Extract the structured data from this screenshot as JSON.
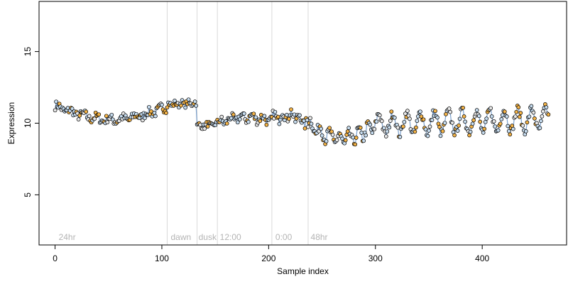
{
  "chart_data": {
    "type": "scatter",
    "title": "",
    "xlabel": "Sample index",
    "ylabel": "Expression",
    "xlim": [
      -15,
      479
    ],
    "ylim": [
      1.5,
      18.5
    ],
    "x_ticks": [
      0,
      100,
      200,
      300,
      400
    ],
    "y_ticks": [
      5,
      10,
      15
    ],
    "grid": false,
    "legend": "none",
    "phase_markers": [
      {
        "x": 105,
        "label": ""
      },
      {
        "x": 133,
        "label": ""
      },
      {
        "x": 152,
        "label": ""
      },
      {
        "x": 203,
        "label": ""
      },
      {
        "x": 237,
        "label": ""
      }
    ],
    "phase_labels": [
      {
        "x": 2,
        "label": "24hr"
      },
      {
        "x": 107,
        "label": "dawn"
      },
      {
        "x": 133,
        "label": "dusk"
      },
      {
        "x": 153,
        "label": "12:00"
      },
      {
        "x": 205,
        "label": "0:00"
      },
      {
        "x": 238,
        "label": "48hr"
      }
    ],
    "segments": [
      {
        "from": 0,
        "to": 105,
        "start": 11.2,
        "end": 11.1,
        "dip": -0.9,
        "wave_amp": 0.15,
        "wave_period": 12,
        "noise": 0.3
      },
      {
        "from": 105,
        "to": 133,
        "start": 11.3,
        "end": 11.4,
        "dip": 0,
        "wave_amp": 0.1,
        "wave_period": 6,
        "noise": 0.2
      },
      {
        "from": 133,
        "to": 152,
        "start": 9.8,
        "end": 9.9,
        "dip": 0,
        "wave_amp": 0.1,
        "wave_period": 8,
        "noise": 0.2
      },
      {
        "from": 152,
        "to": 203,
        "start": 10.0,
        "end": 10.2,
        "dip": 0.3,
        "wave_amp": 0.2,
        "wave_period": 10,
        "noise": 0.3
      },
      {
        "from": 203,
        "to": 237,
        "start": 10.3,
        "end": 10.0,
        "dip": 0.4,
        "wave_amp": 0.3,
        "wave_period": 8,
        "noise": 0.35
      },
      {
        "from": 237,
        "to": 300,
        "start": 10.0,
        "end": 9.8,
        "dip": -1.0,
        "wave_amp": 0.4,
        "wave_period": 9,
        "noise": 0.35
      },
      {
        "from": 300,
        "to": 463,
        "start": 9.9,
        "end": 10.3,
        "dip": 0,
        "wave_amp": 0.75,
        "wave_period": 13,
        "noise": 0.3
      }
    ],
    "seed": 7,
    "colors": {
      "axis": "#000000",
      "phase_line": "#d9d9d9",
      "phase_label": "#b4b4b4",
      "trace": "#4f81bd",
      "point_light": "#c6dcef",
      "point_mid": "#e8e8e8",
      "point_orange": "#f5b447",
      "point_stroke": "#000000"
    }
  }
}
